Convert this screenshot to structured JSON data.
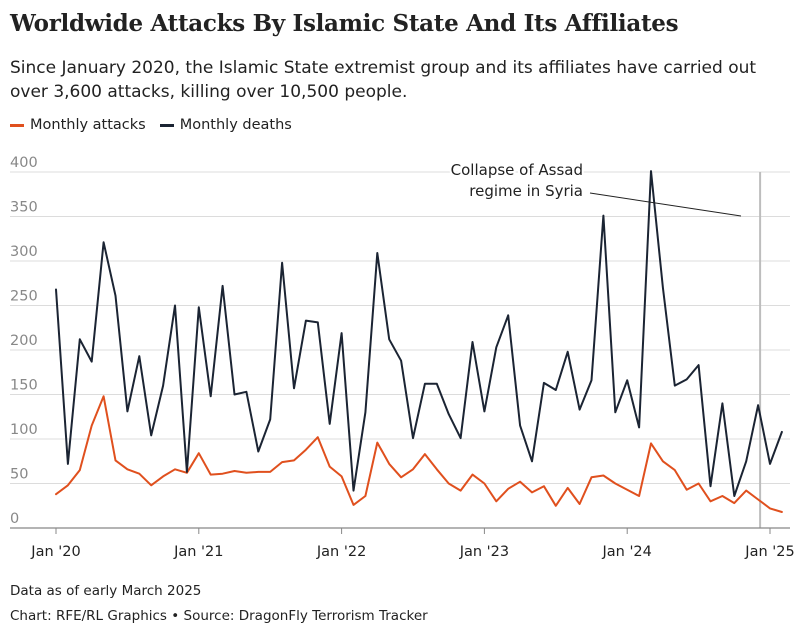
{
  "colors": {
    "attacks": "#e0501e",
    "deaths": "#1b2433",
    "grid": "#dcdcdc",
    "axis": "#888888",
    "marker": "#bdbdbd"
  },
  "chart_data": {
    "type": "line",
    "title": "Worldwide Attacks By Islamic State And Its Affiliates",
    "subtitle": "Since January 2020, the Islamic State extremist group and its affiliates have carried out over 3,600 attacks, killing over 10,500 people.",
    "xlabel": "",
    "ylabel": "",
    "ylim": [
      0,
      400
    ],
    "yticks": [
      0,
      50,
      100,
      150,
      200,
      250,
      300,
      350,
      400
    ],
    "grid": true,
    "legend_placement": "top-left",
    "x_start": "2020-01",
    "x_end": "2025-02",
    "xticks": [
      {
        "month": "2020-01",
        "label": "Jan '20"
      },
      {
        "month": "2021-01",
        "label": "Jan '21"
      },
      {
        "month": "2022-01",
        "label": "Jan '22"
      },
      {
        "month": "2023-01",
        "label": "Jan '23"
      },
      {
        "month": "2024-01",
        "label": "Jan '24"
      },
      {
        "month": "2025-01",
        "label": "Jan '25"
      }
    ],
    "series": [
      {
        "name": "Monthly attacks",
        "color": "#e0501e",
        "values": [
          {
            "month": "2020-01",
            "value": 38
          },
          {
            "month": "2020-02",
            "value": 48
          },
          {
            "month": "2020-03",
            "value": 65
          },
          {
            "month": "2020-04",
            "value": 115
          },
          {
            "month": "2020-05",
            "value": 148
          },
          {
            "month": "2020-06",
            "value": 76
          },
          {
            "month": "2020-07",
            "value": 66
          },
          {
            "month": "2020-08",
            "value": 61
          },
          {
            "month": "2020-09",
            "value": 48
          },
          {
            "month": "2020-10",
            "value": 58
          },
          {
            "month": "2020-11",
            "value": 66
          },
          {
            "month": "2020-12",
            "value": 62
          },
          {
            "month": "2021-01",
            "value": 84
          },
          {
            "month": "2021-02",
            "value": 60
          },
          {
            "month": "2021-03",
            "value": 61
          },
          {
            "month": "2021-04",
            "value": 64
          },
          {
            "month": "2021-05",
            "value": 62
          },
          {
            "month": "2021-06",
            "value": 63
          },
          {
            "month": "2021-07",
            "value": 63
          },
          {
            "month": "2021-08",
            "value": 74
          },
          {
            "month": "2021-09",
            "value": 76
          },
          {
            "month": "2021-10",
            "value": 88
          },
          {
            "month": "2021-11",
            "value": 102
          },
          {
            "month": "2021-12",
            "value": 69
          },
          {
            "month": "2022-01",
            "value": 58
          },
          {
            "month": "2022-02",
            "value": 26
          },
          {
            "month": "2022-03",
            "value": 36
          },
          {
            "month": "2022-04",
            "value": 96
          },
          {
            "month": "2022-05",
            "value": 72
          },
          {
            "month": "2022-06",
            "value": 57
          },
          {
            "month": "2022-07",
            "value": 66
          },
          {
            "month": "2022-08",
            "value": 83
          },
          {
            "month": "2022-09",
            "value": 66
          },
          {
            "month": "2022-10",
            "value": 50
          },
          {
            "month": "2022-11",
            "value": 42
          },
          {
            "month": "2022-12",
            "value": 60
          },
          {
            "month": "2023-01",
            "value": 50
          },
          {
            "month": "2023-02",
            "value": 30
          },
          {
            "month": "2023-03",
            "value": 44
          },
          {
            "month": "2023-04",
            "value": 52
          },
          {
            "month": "2023-05",
            "value": 40
          },
          {
            "month": "2023-06",
            "value": 47
          },
          {
            "month": "2023-07",
            "value": 25
          },
          {
            "month": "2023-08",
            "value": 45
          },
          {
            "month": "2023-09",
            "value": 27
          },
          {
            "month": "2023-10",
            "value": 57
          },
          {
            "month": "2023-11",
            "value": 59
          },
          {
            "month": "2023-12",
            "value": 50
          },
          {
            "month": "2024-01",
            "value": 43
          },
          {
            "month": "2024-02",
            "value": 36
          },
          {
            "month": "2024-03",
            "value": 95
          },
          {
            "month": "2024-04",
            "value": 75
          },
          {
            "month": "2024-05",
            "value": 65
          },
          {
            "month": "2024-06",
            "value": 43
          },
          {
            "month": "2024-07",
            "value": 50
          },
          {
            "month": "2024-08",
            "value": 30
          },
          {
            "month": "2024-09",
            "value": 36
          },
          {
            "month": "2024-10",
            "value": 28
          },
          {
            "month": "2024-11",
            "value": 42
          },
          {
            "month": "2024-12",
            "value": 32
          },
          {
            "month": "2025-01",
            "value": 22
          },
          {
            "month": "2025-02",
            "value": 18
          }
        ]
      },
      {
        "name": "Monthly deaths",
        "color": "#1b2433",
        "values": [
          {
            "month": "2020-01",
            "value": 268
          },
          {
            "month": "2020-02",
            "value": 72
          },
          {
            "month": "2020-03",
            "value": 212
          },
          {
            "month": "2020-04",
            "value": 187
          },
          {
            "month": "2020-05",
            "value": 321
          },
          {
            "month": "2020-06",
            "value": 261
          },
          {
            "month": "2020-07",
            "value": 131
          },
          {
            "month": "2020-08",
            "value": 193
          },
          {
            "month": "2020-09",
            "value": 104
          },
          {
            "month": "2020-10",
            "value": 160
          },
          {
            "month": "2020-11",
            "value": 250
          },
          {
            "month": "2020-12",
            "value": 63
          },
          {
            "month": "2021-01",
            "value": 248
          },
          {
            "month": "2021-02",
            "value": 148
          },
          {
            "month": "2021-03",
            "value": 272
          },
          {
            "month": "2021-04",
            "value": 150
          },
          {
            "month": "2021-05",
            "value": 153
          },
          {
            "month": "2021-06",
            "value": 86
          },
          {
            "month": "2021-07",
            "value": 122
          },
          {
            "month": "2021-08",
            "value": 298
          },
          {
            "month": "2021-09",
            "value": 157
          },
          {
            "month": "2021-10",
            "value": 233
          },
          {
            "month": "2021-11",
            "value": 231
          },
          {
            "month": "2021-12",
            "value": 117
          },
          {
            "month": "2022-01",
            "value": 219
          },
          {
            "month": "2022-02",
            "value": 42
          },
          {
            "month": "2022-03",
            "value": 130
          },
          {
            "month": "2022-04",
            "value": 309
          },
          {
            "month": "2022-05",
            "value": 212
          },
          {
            "month": "2022-06",
            "value": 188
          },
          {
            "month": "2022-07",
            "value": 101
          },
          {
            "month": "2022-08",
            "value": 162
          },
          {
            "month": "2022-09",
            "value": 162
          },
          {
            "month": "2022-10",
            "value": 128
          },
          {
            "month": "2022-11",
            "value": 101
          },
          {
            "month": "2022-12",
            "value": 209
          },
          {
            "month": "2023-01",
            "value": 131
          },
          {
            "month": "2023-02",
            "value": 203
          },
          {
            "month": "2023-03",
            "value": 239
          },
          {
            "month": "2023-04",
            "value": 115
          },
          {
            "month": "2023-05",
            "value": 75
          },
          {
            "month": "2023-06",
            "value": 163
          },
          {
            "month": "2023-07",
            "value": 155
          },
          {
            "month": "2023-08",
            "value": 198
          },
          {
            "month": "2023-09",
            "value": 133
          },
          {
            "month": "2023-10",
            "value": 166
          },
          {
            "month": "2023-11",
            "value": 351
          },
          {
            "month": "2023-12",
            "value": 130
          },
          {
            "month": "2024-01",
            "value": 166
          },
          {
            "month": "2024-02",
            "value": 113
          },
          {
            "month": "2024-03",
            "value": 401
          },
          {
            "month": "2024-04",
            "value": 270
          },
          {
            "month": "2024-05",
            "value": 160
          },
          {
            "month": "2024-06",
            "value": 167
          },
          {
            "month": "2024-07",
            "value": 183
          },
          {
            "month": "2024-08",
            "value": 47
          },
          {
            "month": "2024-09",
            "value": 140
          },
          {
            "month": "2024-10",
            "value": 36
          },
          {
            "month": "2024-11",
            "value": 75
          },
          {
            "month": "2024-12",
            "value": 138
          },
          {
            "month": "2025-01",
            "value": 72
          },
          {
            "month": "2025-02",
            "value": 108
          }
        ]
      }
    ],
    "annotation": {
      "lines": [
        "Collapse of Assad",
        "regime in Syria"
      ],
      "month": "2024-12"
    }
  },
  "footer": {
    "note": "Data as of early March 2025",
    "credit": "Chart: RFE/RL Graphics • Source: DragonFly Terrorism Tracker"
  }
}
